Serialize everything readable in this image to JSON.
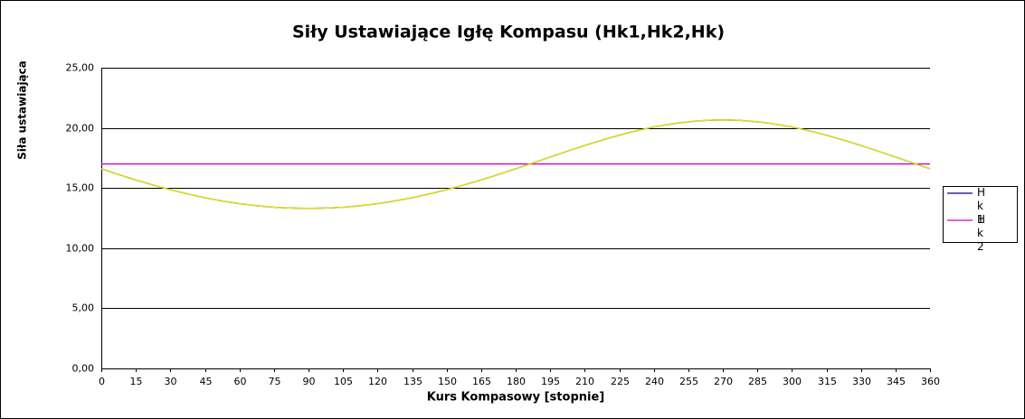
{
  "chart_data": {
    "type": "line",
    "title": "Siły Ustawiające Igłę Kompasu (Hk1,Hk2,Hk)",
    "x_label": "Kurs Kompasowy  [stopnie]",
    "y_label": "Siła ustawiająca",
    "x": [
      0,
      5,
      10,
      15,
      20,
      25,
      30,
      35,
      40,
      45,
      50,
      55,
      60,
      65,
      70,
      75,
      80,
      85,
      90,
      95,
      100,
      105,
      110,
      115,
      120,
      125,
      130,
      135,
      140,
      145,
      150,
      155,
      160,
      165,
      170,
      175,
      180,
      185,
      190,
      195,
      200,
      205,
      210,
      215,
      220,
      225,
      230,
      235,
      240,
      245,
      250,
      255,
      260,
      265,
      270,
      275,
      280,
      285,
      290,
      295,
      300,
      305,
      310,
      315,
      320,
      325,
      330,
      335,
      340,
      345,
      350,
      355,
      360
    ],
    "series": [
      {
        "name": "Hk1",
        "color": "#000080",
        "values": [
          16.6,
          16.28,
          15.97,
          15.67,
          15.39,
          15.11,
          14.86,
          14.62,
          14.4,
          14.19,
          14.01,
          13.84,
          13.7,
          13.58,
          13.48,
          13.4,
          13.35,
          13.32,
          13.31,
          13.32,
          13.35,
          13.4,
          13.48,
          13.58,
          13.7,
          13.84,
          14.01,
          14.19,
          14.4,
          14.62,
          14.86,
          15.11,
          15.39,
          15.67,
          15.97,
          16.28,
          16.6,
          16.92,
          17.25,
          17.58,
          17.9,
          18.22,
          18.53,
          18.83,
          19.12,
          19.39,
          19.64,
          19.87,
          20.07,
          20.24,
          20.39,
          20.5,
          20.59,
          20.64,
          20.66,
          20.64,
          20.59,
          20.5,
          20.39,
          20.24,
          20.07,
          19.87,
          19.64,
          19.39,
          19.12,
          18.83,
          18.53,
          18.22,
          17.9,
          17.58,
          17.25,
          16.92,
          16.6
        ]
      },
      {
        "name": "Hk2",
        "color": "#cc00cc",
        "values": [
          17,
          17,
          17,
          17,
          17,
          17,
          17,
          17,
          17,
          17,
          17,
          17,
          17,
          17,
          17,
          17,
          17,
          17,
          17,
          17,
          17,
          17,
          17,
          17,
          17,
          17,
          17,
          17,
          17,
          17,
          17,
          17,
          17,
          17,
          17,
          17,
          17,
          17,
          17,
          17,
          17,
          17,
          17,
          17,
          17,
          17,
          17,
          17,
          17,
          17,
          17,
          17,
          17,
          17,
          17,
          17,
          17,
          17,
          17,
          17,
          17,
          17,
          17,
          17,
          17,
          17,
          17,
          17,
          17,
          17,
          17,
          17,
          17
        ]
      },
      {
        "color": "#e6e600",
        "values": [
          16.6,
          16.28,
          15.97,
          15.67,
          15.39,
          15.11,
          14.86,
          14.62,
          14.4,
          14.19,
          14.01,
          13.84,
          13.7,
          13.58,
          13.48,
          13.4,
          13.35,
          13.32,
          13.31,
          13.32,
          13.35,
          13.4,
          13.48,
          13.58,
          13.7,
          13.84,
          14.01,
          14.19,
          14.4,
          14.62,
          14.86,
          15.11,
          15.39,
          15.67,
          15.97,
          16.28,
          16.6,
          16.92,
          17.25,
          17.58,
          17.9,
          18.22,
          18.53,
          18.83,
          19.12,
          19.39,
          19.64,
          19.87,
          20.07,
          20.24,
          20.39,
          20.5,
          20.59,
          20.64,
          20.66,
          20.64,
          20.59,
          20.5,
          20.39,
          20.24,
          20.07,
          19.87,
          19.64,
          19.39,
          19.12,
          18.83,
          18.53,
          18.22,
          17.9,
          17.58,
          17.25,
          16.92,
          16.6
        ]
      }
    ],
    "xlim": [
      0,
      360
    ],
    "xticks": [
      0,
      15,
      30,
      45,
      60,
      75,
      90,
      105,
      120,
      135,
      150,
      165,
      180,
      195,
      210,
      225,
      240,
      255,
      270,
      285,
      300,
      315,
      330,
      345,
      360
    ],
    "ylim": [
      0,
      25
    ],
    "yticks": [
      {
        "value": 0,
        "label": "0,00"
      },
      {
        "value": 5,
        "label": "5,00"
      },
      {
        "value": 10,
        "label": "10,00"
      },
      {
        "value": 15,
        "label": "15,00"
      },
      {
        "value": 20,
        "label": "20,00"
      },
      {
        "value": 25,
        "label": "25,00"
      }
    ],
    "grid": true,
    "legend": "right"
  }
}
